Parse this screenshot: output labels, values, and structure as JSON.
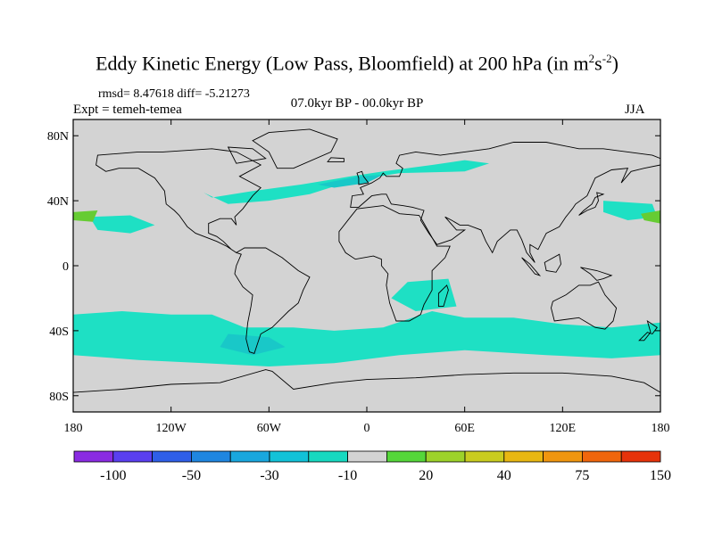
{
  "title": {
    "main": "Eddy Kinetic Energy (Low Pass, Bloomfield) at 200 hPa (in m",
    "sup1": "2",
    "mid": "s",
    "sup2": "-2",
    "end": ")"
  },
  "stats": "rmsd= 8.47618 diff= -5.21273",
  "experiment": "Expt = temeh-temea",
  "period": "07.0kyr BP - 00.0kyr BP",
  "season": "JJA",
  "map": {
    "land_color": "#d3d3d3",
    "coastline_color": "#000000",
    "lon_range": [
      -180,
      180
    ],
    "lat_range": [
      -90,
      90
    ],
    "y_ticks": [
      {
        "lat": 80,
        "label": "80N"
      },
      {
        "lat": 40,
        "label": "40N"
      },
      {
        "lat": 0,
        "label": "0"
      },
      {
        "lat": -40,
        "label": "40S"
      },
      {
        "lat": -80,
        "label": "80S"
      }
    ],
    "x_ticks": [
      {
        "lon": -180,
        "label": "180"
      },
      {
        "lon": -120,
        "label": "120W"
      },
      {
        "lon": -60,
        "label": "60W"
      },
      {
        "lon": 0,
        "label": "0"
      },
      {
        "lon": 60,
        "label": "60E"
      },
      {
        "lon": 120,
        "label": "120E"
      },
      {
        "lon": 180,
        "label": "180"
      }
    ],
    "anomaly_regions": [
      {
        "name": "north-atlantic-negative",
        "color": "#1ee0c4",
        "lonlat": [
          [
            -95,
            42
          ],
          [
            -70,
            46
          ],
          [
            -40,
            50
          ],
          [
            -10,
            55
          ],
          [
            10,
            58
          ],
          [
            40,
            62
          ],
          [
            60,
            65
          ],
          [
            75,
            63
          ],
          [
            60,
            58
          ],
          [
            20,
            57
          ],
          [
            -10,
            52
          ],
          [
            -35,
            44
          ],
          [
            -60,
            40
          ],
          [
            -85,
            38
          ],
          [
            -100,
            45
          ]
        ]
      },
      {
        "name": "north-atlantic-core",
        "color": "#19c8c8",
        "lonlat": [
          [
            -30,
            50
          ],
          [
            -5,
            55
          ],
          [
            10,
            56
          ],
          [
            0,
            51
          ],
          [
            -20,
            48
          ]
        ]
      },
      {
        "name": "north-pacific-negative",
        "color": "#1ee0c4",
        "lonlat": [
          [
            -170,
            30
          ],
          [
            -145,
            31
          ],
          [
            -130,
            25
          ],
          [
            -145,
            20
          ],
          [
            -165,
            22
          ]
        ]
      },
      {
        "name": "southern-ocean-negative",
        "color": "#1ee0c4",
        "lonlat": [
          [
            -180,
            -30
          ],
          [
            -150,
            -28
          ],
          [
            -120,
            -30
          ],
          [
            -95,
            -30
          ],
          [
            -75,
            -38
          ],
          [
            -45,
            -38
          ],
          [
            -20,
            -40
          ],
          [
            10,
            -38
          ],
          [
            40,
            -28
          ],
          [
            60,
            -32
          ],
          [
            90,
            -32
          ],
          [
            120,
            -36
          ],
          [
            150,
            -38
          ],
          [
            180,
            -35
          ],
          [
            180,
            -55
          ],
          [
            150,
            -57
          ],
          [
            110,
            -55
          ],
          [
            60,
            -52
          ],
          [
            20,
            -55
          ],
          [
            -20,
            -60
          ],
          [
            -60,
            -62
          ],
          [
            -100,
            -60
          ],
          [
            -140,
            -58
          ],
          [
            -180,
            -55
          ]
        ]
      },
      {
        "name": "southern-ocean-core",
        "color": "#19c8c8",
        "lonlat": [
          [
            -85,
            -42
          ],
          [
            -60,
            -44
          ],
          [
            -50,
            -50
          ],
          [
            -70,
            -55
          ],
          [
            -90,
            -50
          ]
        ]
      },
      {
        "name": "east-africa-negative",
        "color": "#1ee0c4",
        "lonlat": [
          [
            25,
            -10
          ],
          [
            50,
            -8
          ],
          [
            55,
            -25
          ],
          [
            30,
            -28
          ],
          [
            15,
            -20
          ]
        ]
      },
      {
        "name": "nw-pacific-negative",
        "color": "#1ee0c4",
        "lonlat": [
          [
            145,
            40
          ],
          [
            175,
            38
          ],
          [
            178,
            30
          ],
          [
            160,
            28
          ],
          [
            145,
            33
          ]
        ]
      },
      {
        "name": "pacific-positive-west",
        "color": "#66cc33",
        "lonlat": [
          [
            -180,
            33
          ],
          [
            -165,
            34
          ],
          [
            -168,
            27
          ],
          [
            -180,
            28
          ]
        ]
      },
      {
        "name": "pacific-positive-east",
        "color": "#66cc33",
        "lonlat": [
          [
            168,
            32
          ],
          [
            180,
            34
          ],
          [
            180,
            26
          ],
          [
            170,
            28
          ]
        ]
      }
    ]
  },
  "colorbar": {
    "colors": [
      "#8a2be2",
      "#5a3ff0",
      "#2f5fe8",
      "#1f86e0",
      "#19a7de",
      "#12c2d8",
      "#17d9c0",
      "#d3d3d3",
      "#55d63a",
      "#9dd22a",
      "#c9cc20",
      "#e8b712",
      "#f0960f",
      "#f0660c",
      "#e6330a"
    ],
    "labels": [
      {
        "index": 1,
        "text": "-100"
      },
      {
        "index": 3,
        "text": "-50"
      },
      {
        "index": 5,
        "text": "-30"
      },
      {
        "index": 7,
        "text": "-10"
      },
      {
        "index": 9,
        "text": "20"
      },
      {
        "index": 11,
        "text": "40"
      },
      {
        "index": 13,
        "text": "75"
      },
      {
        "index": 15,
        "text": "150"
      }
    ]
  }
}
